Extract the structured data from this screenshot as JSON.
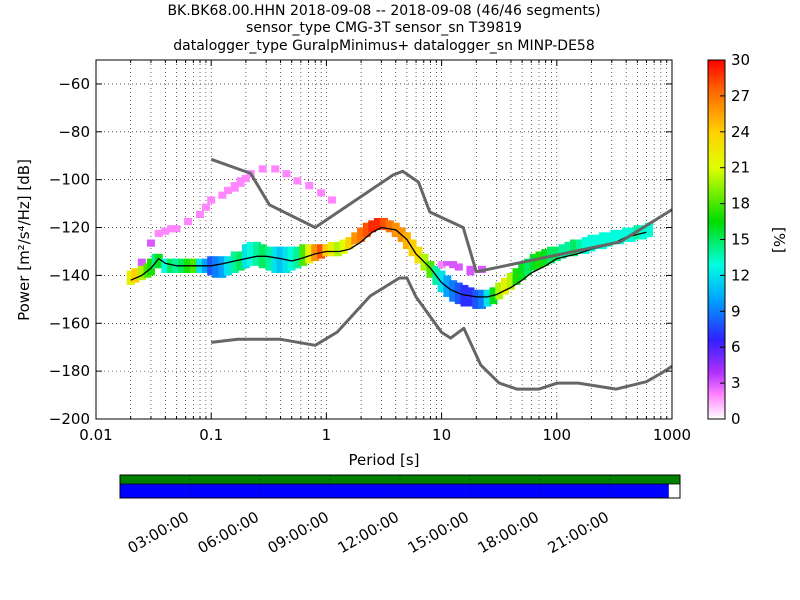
{
  "chart_data": {
    "type": "heatmap",
    "title": [
      "BK.BK68.00.HHN   2018-09-08 -- 2018-09-08  (46/46 segments)",
      "sensor_type CMG-3T sensor_sn T39819",
      "datalogger_type GuralpMinimus+ datalogger_sn MINP-DE58"
    ],
    "xlabel": "Period [s]",
    "ylabel": "Power [m²/s⁴/Hz] [dB]",
    "xscale": "log",
    "xlim": [
      0.01,
      1000
    ],
    "ylim": [
      -200,
      -50
    ],
    "x_tick_labels": [
      "0.01",
      "0.1",
      "1",
      "10",
      "100",
      "1000"
    ],
    "x_tick_values": [
      0.01,
      0.1,
      1,
      10,
      100,
      1000
    ],
    "y_tick_values": [
      -200,
      -180,
      -160,
      -140,
      -120,
      -100,
      -80,
      -60
    ],
    "y_tick_labels": [
      "−200",
      "−180",
      "−160",
      "−140",
      "−120",
      "−100",
      "−80",
      "−60"
    ],
    "grid": true,
    "colorbar": {
      "label": "[%]",
      "range": [
        0,
        30
      ],
      "tick_values": [
        0,
        3,
        6,
        9,
        12,
        15,
        18,
        21,
        24,
        27,
        30
      ],
      "tick_labels": [
        "0",
        "3",
        "6",
        "9",
        "12",
        "15",
        "18",
        "21",
        "24",
        "27",
        "30"
      ],
      "colormap": "pqlx"
    },
    "series": [
      {
        "kind": "mean",
        "x": [
          0.02,
          0.025,
          0.03,
          0.035,
          0.04,
          0.05,
          0.06,
          0.08,
          0.1,
          0.13,
          0.16,
          0.2,
          0.25,
          0.3,
          0.4,
          0.5,
          0.6,
          0.8,
          1,
          1.3,
          1.6,
          2,
          2.5,
          3,
          4,
          5,
          6,
          8,
          10,
          12,
          15,
          20,
          25,
          30,
          40,
          50,
          60,
          80,
          100,
          150,
          200,
          300,
          400,
          600
        ],
        "y": [
          -142,
          -140,
          -137,
          -133,
          -135,
          -136,
          -136,
          -136,
          -136,
          -135,
          -134,
          -133,
          -132,
          -132,
          -133,
          -134,
          -133,
          -131,
          -130,
          -130,
          -129,
          -126,
          -122,
          -120,
          -121,
          -125,
          -131,
          -137,
          -143,
          -146,
          -148,
          -149,
          -149,
          -148,
          -145,
          -142,
          -139,
          -136,
          -133,
          -131,
          -129,
          -127,
          -124,
          -122
        ]
      },
      {
        "kind": "nlnm",
        "x": [
          0.1,
          0.17,
          0.4,
          0.8,
          1.24,
          2.4,
          4.3,
          5,
          6,
          10,
          12,
          15.6,
          21.9,
          31.6,
          45,
          70,
          101,
          154,
          328,
          600,
          800,
          1000
        ],
        "y": [
          -168,
          -166.7,
          -166.7,
          -169.2,
          -163.7,
          -148.6,
          -141.1,
          -141.1,
          -149,
          -163.8,
          -166.2,
          -162.1,
          -177.5,
          -185,
          -187.5,
          -187.5,
          -185,
          -185,
          -187.5,
          -184.4,
          -181,
          -178
        ]
      },
      {
        "kind": "nhnm",
        "x": [
          0.1,
          0.22,
          0.32,
          0.8,
          3.8,
          4.6,
          6.3,
          7.9,
          15.4,
          20,
          354.8,
          1000
        ],
        "y": [
          -91.5,
          -97.4,
          -110.5,
          -120,
          -98,
          -96.5,
          -101,
          -113.5,
          -120,
          -138.5,
          -126,
          -112.5
        ]
      }
    ],
    "probability_cells": [
      {
        "x": 0.02,
        "ylo": -144,
        "yhi": -138,
        "pct": 22
      },
      {
        "x": 0.022,
        "ylo": -143,
        "yhi": -137,
        "pct": 24
      },
      {
        "x": 0.025,
        "ylo": -142,
        "yhi": -135,
        "pct": 20
      },
      {
        "x": 0.025,
        "ylo": -136,
        "yhi": -133,
        "pct": 3
      },
      {
        "x": 0.028,
        "ylo": -141,
        "yhi": -135,
        "pct": 18
      },
      {
        "x": 0.03,
        "ylo": -140,
        "yhi": -133,
        "pct": 17
      },
      {
        "x": 0.03,
        "ylo": -128,
        "yhi": -125,
        "pct": 3
      },
      {
        "x": 0.033,
        "ylo": -137,
        "yhi": -131,
        "pct": 14
      },
      {
        "x": 0.035,
        "ylo": -137,
        "yhi": -131,
        "pct": 16
      },
      {
        "x": 0.035,
        "ylo": -124,
        "yhi": -121,
        "pct": 2
      },
      {
        "x": 0.04,
        "ylo": -139,
        "yhi": -133,
        "pct": 13
      },
      {
        "x": 0.04,
        "ylo": -123,
        "yhi": -120,
        "pct": 2
      },
      {
        "x": 0.045,
        "ylo": -139,
        "yhi": -133,
        "pct": 15
      },
      {
        "x": 0.045,
        "ylo": -122,
        "yhi": -119,
        "pct": 2
      },
      {
        "x": 0.05,
        "ylo": -139,
        "yhi": -133,
        "pct": 14
      },
      {
        "x": 0.05,
        "ylo": -122,
        "yhi": -119,
        "pct": 2
      },
      {
        "x": 0.056,
        "ylo": -139,
        "yhi": -133,
        "pct": 15
      },
      {
        "x": 0.063,
        "ylo": -139,
        "yhi": -133,
        "pct": 17
      },
      {
        "x": 0.063,
        "ylo": -119,
        "yhi": -116,
        "pct": 2
      },
      {
        "x": 0.071,
        "ylo": -139,
        "yhi": -133,
        "pct": 18
      },
      {
        "x": 0.08,
        "ylo": -139,
        "yhi": -133,
        "pct": 12
      },
      {
        "x": 0.08,
        "ylo": -116,
        "yhi": -113,
        "pct": 2
      },
      {
        "x": 0.09,
        "ylo": -139,
        "yhi": -133,
        "pct": 10
      },
      {
        "x": 0.09,
        "ylo": -113,
        "yhi": -110,
        "pct": 2
      },
      {
        "x": 0.1,
        "ylo": -140,
        "yhi": -132,
        "pct": 8
      },
      {
        "x": 0.1,
        "ylo": -110,
        "yhi": -107,
        "pct": 2
      },
      {
        "x": 0.11,
        "ylo": -141,
        "yhi": -132,
        "pct": 9
      },
      {
        "x": 0.125,
        "ylo": -141,
        "yhi": -132,
        "pct": 10
      },
      {
        "x": 0.125,
        "ylo": -108,
        "yhi": -105,
        "pct": 2
      },
      {
        "x": 0.14,
        "ylo": -140,
        "yhi": -132,
        "pct": 12
      },
      {
        "x": 0.14,
        "ylo": -106,
        "yhi": -103,
        "pct": 2
      },
      {
        "x": 0.16,
        "ylo": -139,
        "yhi": -130,
        "pct": 14
      },
      {
        "x": 0.16,
        "ylo": -105,
        "yhi": -101,
        "pct": 2
      },
      {
        "x": 0.18,
        "ylo": -138,
        "yhi": -130,
        "pct": 15
      },
      {
        "x": 0.18,
        "ylo": -103,
        "yhi": -99,
        "pct": 2
      },
      {
        "x": 0.2,
        "ylo": -137,
        "yhi": -127,
        "pct": 12
      },
      {
        "x": 0.2,
        "ylo": -101,
        "yhi": -98,
        "pct": 2
      },
      {
        "x": 0.22,
        "ylo": -136,
        "yhi": -126,
        "pct": 13
      },
      {
        "x": 0.22,
        "ylo": -99,
        "yhi": -96,
        "pct": 2
      },
      {
        "x": 0.25,
        "ylo": -136,
        "yhi": -126,
        "pct": 14
      },
      {
        "x": 0.28,
        "ylo": -137,
        "yhi": -127,
        "pct": 15
      },
      {
        "x": 0.28,
        "ylo": -97,
        "yhi": -94,
        "pct": 2
      },
      {
        "x": 0.32,
        "ylo": -138,
        "yhi": -128,
        "pct": 14
      },
      {
        "x": 0.36,
        "ylo": -139,
        "yhi": -128,
        "pct": 12
      },
      {
        "x": 0.36,
        "ylo": -97,
        "yhi": -94,
        "pct": 2
      },
      {
        "x": 0.4,
        "ylo": -139,
        "yhi": -128,
        "pct": 11
      },
      {
        "x": 0.45,
        "ylo": -139,
        "yhi": -128,
        "pct": 12
      },
      {
        "x": 0.45,
        "ylo": -99,
        "yhi": -96,
        "pct": 2
      },
      {
        "x": 0.5,
        "ylo": -138,
        "yhi": -128,
        "pct": 13
      },
      {
        "x": 0.56,
        "ylo": -137,
        "yhi": -128,
        "pct": 14
      },
      {
        "x": 0.56,
        "ylo": -102,
        "yhi": -99,
        "pct": 2
      },
      {
        "x": 0.63,
        "ylo": -136,
        "yhi": -127,
        "pct": 18
      },
      {
        "x": 0.71,
        "ylo": -135,
        "yhi": -127,
        "pct": 22
      },
      {
        "x": 0.71,
        "ylo": -104,
        "yhi": -101,
        "pct": 2
      },
      {
        "x": 0.8,
        "ylo": -134,
        "yhi": -127,
        "pct": 26
      },
      {
        "x": 0.9,
        "ylo": -133,
        "yhi": -127,
        "pct": 28
      },
      {
        "x": 0.9,
        "ylo": -107,
        "yhi": -104,
        "pct": 2
      },
      {
        "x": 1.0,
        "ylo": -132,
        "yhi": -127,
        "pct": 24
      },
      {
        "x": 1.12,
        "ylo": -132,
        "yhi": -126,
        "pct": 22
      },
      {
        "x": 1.12,
        "ylo": -110,
        "yhi": -107,
        "pct": 2
      },
      {
        "x": 1.26,
        "ylo": -132,
        "yhi": -126,
        "pct": 20
      },
      {
        "x": 1.41,
        "ylo": -131,
        "yhi": -125,
        "pct": 21
      },
      {
        "x": 1.58,
        "ylo": -129,
        "yhi": -124,
        "pct": 24
      },
      {
        "x": 1.78,
        "ylo": -127,
        "yhi": -122,
        "pct": 26
      },
      {
        "x": 2.0,
        "ylo": -126,
        "yhi": -120,
        "pct": 27
      },
      {
        "x": 2.24,
        "ylo": -124,
        "yhi": -118,
        "pct": 28
      },
      {
        "x": 2.5,
        "ylo": -122,
        "yhi": -117,
        "pct": 29
      },
      {
        "x": 2.8,
        "ylo": -121,
        "yhi": -116,
        "pct": 29
      },
      {
        "x": 3.16,
        "ylo": -121,
        "yhi": -116,
        "pct": 28
      },
      {
        "x": 3.55,
        "ylo": -122,
        "yhi": -117,
        "pct": 27
      },
      {
        "x": 4.0,
        "ylo": -124,
        "yhi": -118,
        "pct": 26
      },
      {
        "x": 4.5,
        "ylo": -126,
        "yhi": -120,
        "pct": 26
      },
      {
        "x": 5.0,
        "ylo": -129,
        "yhi": -122,
        "pct": 25
      },
      {
        "x": 5.6,
        "ylo": -132,
        "yhi": -125,
        "pct": 24
      },
      {
        "x": 6.3,
        "ylo": -135,
        "yhi": -128,
        "pct": 23
      },
      {
        "x": 7.1,
        "ylo": -138,
        "yhi": -131,
        "pct": 20
      },
      {
        "x": 8.0,
        "ylo": -141,
        "yhi": -134,
        "pct": 18
      },
      {
        "x": 9.0,
        "ylo": -144,
        "yhi": -136,
        "pct": 14
      },
      {
        "x": 10.0,
        "ylo": -147,
        "yhi": -138,
        "pct": 12
      },
      {
        "x": 10.0,
        "ylo": -137,
        "yhi": -134,
        "pct": 2
      },
      {
        "x": 11.2,
        "ylo": -149,
        "yhi": -140,
        "pct": 10
      },
      {
        "x": 11.2,
        "ylo": -136,
        "yhi": -134,
        "pct": 3
      },
      {
        "x": 12.6,
        "ylo": -151,
        "yhi": -142,
        "pct": 9
      },
      {
        "x": 12.6,
        "ylo": -137,
        "yhi": -134,
        "pct": 3
      },
      {
        "x": 14.1,
        "ylo": -152,
        "yhi": -143,
        "pct": 8
      },
      {
        "x": 14.1,
        "ylo": -138,
        "yhi": -135,
        "pct": 3
      },
      {
        "x": 15.8,
        "ylo": -153,
        "yhi": -144,
        "pct": 7
      },
      {
        "x": 17.8,
        "ylo": -153,
        "yhi": -145,
        "pct": 7
      },
      {
        "x": 17.8,
        "ylo": -140,
        "yhi": -136,
        "pct": 3
      },
      {
        "x": 20.0,
        "ylo": -154,
        "yhi": -146,
        "pct": 8
      },
      {
        "x": 22.4,
        "ylo": -154,
        "yhi": -146,
        "pct": 9
      },
      {
        "x": 22.4,
        "ylo": -139,
        "yhi": -136,
        "pct": 3
      },
      {
        "x": 25.1,
        "ylo": -153,
        "yhi": -146,
        "pct": 12
      },
      {
        "x": 28.2,
        "ylo": -152,
        "yhi": -145,
        "pct": 16
      },
      {
        "x": 31.6,
        "ylo": -150,
        "yhi": -143,
        "pct": 20
      },
      {
        "x": 35.5,
        "ylo": -148,
        "yhi": -141,
        "pct": 22
      },
      {
        "x": 39.8,
        "ylo": -146,
        "yhi": -139,
        "pct": 20
      },
      {
        "x": 44.7,
        "ylo": -144,
        "yhi": -137,
        "pct": 17
      },
      {
        "x": 50.1,
        "ylo": -142,
        "yhi": -135,
        "pct": 16
      },
      {
        "x": 56.2,
        "ylo": -140,
        "yhi": -133,
        "pct": 15
      },
      {
        "x": 63.1,
        "ylo": -138,
        "yhi": -131,
        "pct": 16
      },
      {
        "x": 70.8,
        "ylo": -137,
        "yhi": -130,
        "pct": 17
      },
      {
        "x": 79.4,
        "ylo": -136,
        "yhi": -129,
        "pct": 16
      },
      {
        "x": 89.1,
        "ylo": -135,
        "yhi": -128,
        "pct": 15
      },
      {
        "x": 100,
        "ylo": -134,
        "yhi": -128,
        "pct": 15
      },
      {
        "x": 112,
        "ylo": -133,
        "yhi": -127,
        "pct": 14
      },
      {
        "x": 126,
        "ylo": -132,
        "yhi": -126,
        "pct": 14
      },
      {
        "x": 141,
        "ylo": -132,
        "yhi": -125,
        "pct": 15
      },
      {
        "x": 158,
        "ylo": -131,
        "yhi": -125,
        "pct": 14
      },
      {
        "x": 178,
        "ylo": -131,
        "yhi": -124,
        "pct": 13
      },
      {
        "x": 200,
        "ylo": -130,
        "yhi": -123,
        "pct": 13
      },
      {
        "x": 224,
        "ylo": -129,
        "yhi": -123,
        "pct": 13
      },
      {
        "x": 251,
        "ylo": -129,
        "yhi": -122,
        "pct": 13
      },
      {
        "x": 282,
        "ylo": -128,
        "yhi": -122,
        "pct": 13
      },
      {
        "x": 316,
        "ylo": -127,
        "yhi": -121,
        "pct": 13
      },
      {
        "x": 355,
        "ylo": -127,
        "yhi": -121,
        "pct": 13
      },
      {
        "x": 398,
        "ylo": -126,
        "yhi": -120,
        "pct": 13
      },
      {
        "x": 447,
        "ylo": -126,
        "yhi": -120,
        "pct": 13
      },
      {
        "x": 501,
        "ylo": -125,
        "yhi": -119,
        "pct": 14
      },
      {
        "x": 562,
        "ylo": -125,
        "yhi": -119,
        "pct": 13
      },
      {
        "x": 631,
        "ylo": -124,
        "yhi": -118,
        "pct": 13
      }
    ]
  },
  "timeline": {
    "coverage_fraction": 0.98,
    "tick_labels": [
      "03:00:00",
      "06:00:00",
      "09:00:00",
      "12:00:00",
      "15:00:00",
      "18:00:00",
      "21:00:00"
    ],
    "tick_hours": [
      3,
      6,
      9,
      12,
      15,
      18,
      21
    ],
    "colors": {
      "top_bar": "#008000",
      "coverage": "#0000ff"
    }
  },
  "colors": {
    "reference_curves": "#666666",
    "mean_curve": "#000000",
    "grid": "#000000"
  }
}
